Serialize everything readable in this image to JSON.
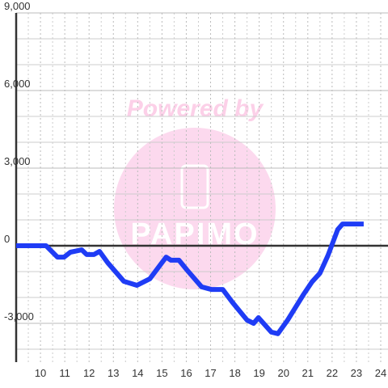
{
  "chart_data": {
    "type": "line",
    "x": [
      9,
      10.23,
      10.7,
      10.97,
      11.23,
      11.7,
      11.9,
      12.2,
      12.43,
      12.77,
      13.43,
      13.97,
      14.5,
      15.17,
      15.37,
      15.7,
      16.03,
      16.63,
      17.03,
      17.5,
      17.9,
      18.5,
      18.77,
      18.97,
      19.5,
      19.77,
      20.17,
      20.83,
      21.17,
      21.5,
      21.83,
      22.23,
      22.43,
      23.3
    ],
    "series": [
      {
        "color": "#1f3cf5",
        "values": [
          0,
          0,
          -440,
          -440,
          -250,
          -160,
          -340,
          -340,
          -220,
          -660,
          -1375,
          -1530,
          -1280,
          -440,
          -560,
          -560,
          -940,
          -1590,
          -1690,
          -1690,
          -2190,
          -2875,
          -3000,
          -2780,
          -3340,
          -3400,
          -2875,
          -1875,
          -1400,
          -1060,
          -375,
          625,
          840,
          840
        ]
      }
    ],
    "xlim": [
      9,
      24.3
    ],
    "ylim": [
      -4500,
      9000
    ],
    "xticks": [
      10,
      11,
      12,
      13,
      14,
      15,
      16,
      17,
      18,
      19,
      20,
      21,
      22,
      23,
      24
    ],
    "yticks": [
      {
        "value": -3000,
        "label": "-3,000"
      },
      0,
      {
        "value": 3000,
        "label": "3,000"
      },
      {
        "value": 6000,
        "label": "6,000"
      },
      {
        "value": 9000,
        "label": "9,000"
      }
    ],
    "ygrid": [
      -4000,
      -2000,
      -1000,
      1000,
      2000,
      4000,
      5000,
      7000,
      8000
    ],
    "xgrid": [
      9.5,
      10.5,
      11.5,
      12.5,
      13.5,
      14.5,
      15.5,
      16.5,
      17.5,
      18.5,
      19.5,
      20.5,
      21.5,
      22.5,
      23.5
    ],
    "grid": true
  },
  "watermark": {
    "caption": "Powered by",
    "logo": "PAPIMO"
  }
}
